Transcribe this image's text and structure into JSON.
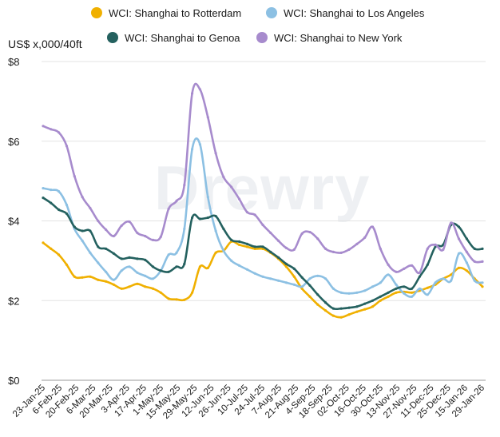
{
  "unit_label": "US$ x,000/40ft",
  "watermark": "Drewry",
  "colors": {
    "rotterdam": "#F0B000",
    "los_angeles": "#8CC0E3",
    "genoa": "#24615F",
    "new_york": "#A78BCD",
    "grid": "#E3E3E3",
    "axis": "#9A9A9A"
  },
  "chart_data": {
    "type": "line",
    "ylabel": "US$ x,000/40ft",
    "ylim": [
      0,
      8
    ],
    "grid": "horizontal",
    "legend_position": "top",
    "y_ticks": [
      {
        "value": 0,
        "label": "$0"
      },
      {
        "value": 2,
        "label": "$2"
      },
      {
        "value": 4,
        "label": "$4"
      },
      {
        "value": 6,
        "label": "$6"
      },
      {
        "value": 8,
        "label": "$8"
      }
    ],
    "x_tick_labels": [
      "23-Jan-25",
      "6-Feb-25",
      "20-Feb-25",
      "6-Mar-25",
      "20-Mar-25",
      "3-Apr-25",
      "17-Apr-25",
      "1-May-25",
      "15-May-25",
      "29-May-25",
      "12-Jun-25",
      "26-Jun-25",
      "10-Jul-25",
      "24-Jul-25",
      "7-Aug-25",
      "21-Aug-25",
      "4-Sep-25",
      "18-Sep-25",
      "02-Oct-25",
      "16-Oct-25",
      "30-Oct-25",
      "13-Nov-25",
      "27-Nov-25",
      "11-Dec-25",
      "25-Dec-25",
      "15-Jan-26",
      "29-Jan-26"
    ],
    "series": [
      {
        "key": "rotterdam",
        "name": "WCI: Shanghai to Rotterdam",
        "values": [
          3.45,
          3.3,
          3.15,
          2.9,
          2.6,
          2.58,
          2.6,
          2.52,
          2.48,
          2.4,
          2.3,
          2.35,
          2.42,
          2.35,
          2.3,
          2.2,
          2.05,
          2.03,
          2.02,
          2.2,
          2.85,
          2.82,
          3.2,
          3.25,
          3.48,
          3.4,
          3.35,
          3.3,
          3.3,
          3.2,
          3.05,
          2.85,
          2.6,
          2.3,
          2.1,
          1.9,
          1.75,
          1.62,
          1.58,
          1.65,
          1.72,
          1.78,
          1.85,
          2.0,
          2.1,
          2.2,
          2.22,
          2.2,
          2.25,
          2.32,
          2.4,
          2.55,
          2.65,
          2.82,
          2.75,
          2.55,
          2.35
        ]
      },
      {
        "key": "los_angeles",
        "name": "WCI: Shanghai to Los Angeles",
        "values": [
          4.82,
          4.78,
          4.74,
          4.4,
          3.8,
          3.5,
          3.2,
          2.95,
          2.72,
          2.52,
          2.75,
          2.85,
          2.7,
          2.62,
          2.55,
          2.75,
          3.15,
          3.2,
          3.8,
          5.8,
          5.92,
          4.6,
          3.75,
          3.25,
          3.0,
          2.88,
          2.78,
          2.68,
          2.6,
          2.55,
          2.5,
          2.45,
          2.4,
          2.35,
          2.55,
          2.62,
          2.55,
          2.3,
          2.2,
          2.18,
          2.2,
          2.25,
          2.35,
          2.45,
          2.65,
          2.4,
          2.18,
          2.1,
          2.3,
          2.15,
          2.45,
          2.55,
          2.5,
          3.18,
          2.95,
          2.5,
          2.45
        ]
      },
      {
        "key": "genoa",
        "name": "WCI: Shanghai to Genoa",
        "values": [
          4.58,
          4.45,
          4.28,
          4.18,
          3.85,
          3.75,
          3.75,
          3.35,
          3.3,
          3.18,
          3.05,
          3.08,
          3.05,
          3.02,
          2.85,
          2.75,
          2.72,
          2.85,
          2.92,
          4.08,
          4.05,
          4.08,
          4.12,
          3.8,
          3.52,
          3.48,
          3.42,
          3.35,
          3.35,
          3.22,
          3.08,
          2.92,
          2.8,
          2.58,
          2.38,
          2.15,
          1.95,
          1.8,
          1.8,
          1.82,
          1.85,
          1.92,
          2.0,
          2.1,
          2.2,
          2.3,
          2.35,
          2.3,
          2.6,
          2.9,
          3.35,
          3.4,
          3.9,
          3.85,
          3.55,
          3.3,
          3.3
        ]
      },
      {
        "key": "new_york",
        "name": "WCI: Shanghai to New York",
        "values": [
          6.38,
          6.3,
          6.22,
          5.88,
          5.12,
          4.6,
          4.32,
          4.0,
          3.78,
          3.62,
          3.88,
          3.98,
          3.7,
          3.62,
          3.52,
          3.6,
          4.3,
          4.5,
          4.9,
          7.2,
          7.3,
          6.6,
          5.7,
          5.1,
          4.85,
          4.55,
          4.22,
          4.15,
          3.9,
          3.7,
          3.5,
          3.32,
          3.28,
          3.68,
          3.72,
          3.55,
          3.3,
          3.22,
          3.2,
          3.28,
          3.42,
          3.58,
          3.85,
          3.3,
          2.9,
          2.72,
          2.8,
          2.88,
          2.7,
          3.3,
          3.4,
          3.28,
          3.95,
          3.55,
          3.22,
          2.98,
          2.98
        ]
      }
    ]
  }
}
